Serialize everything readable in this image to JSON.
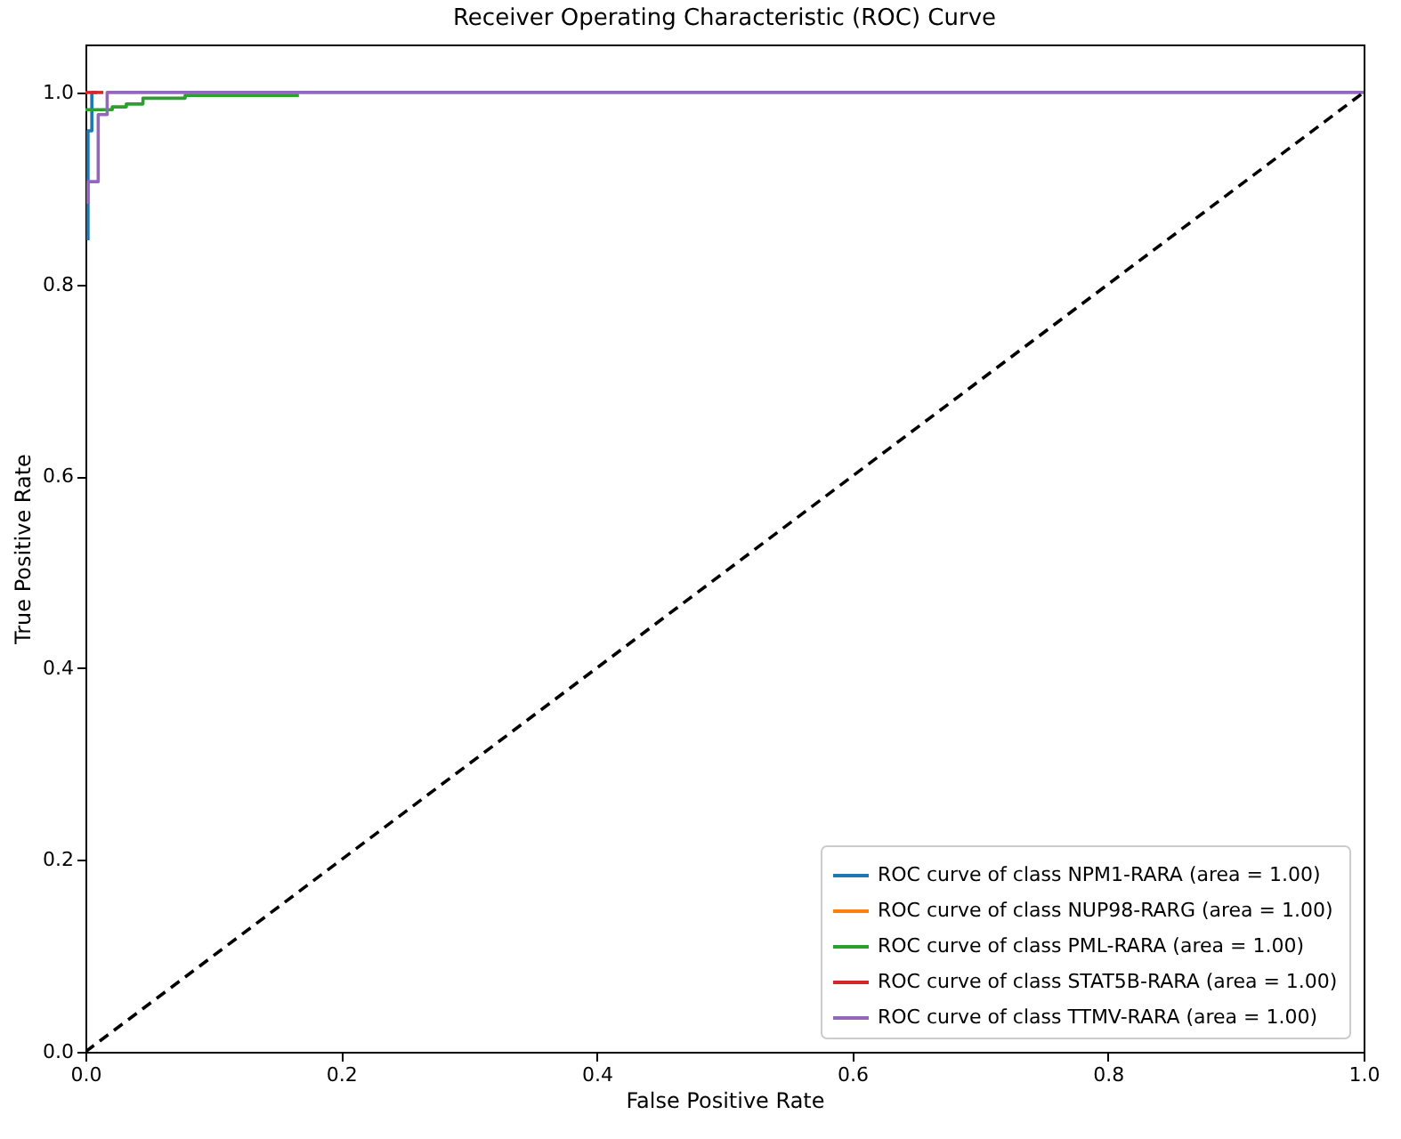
{
  "chart_data": {
    "type": "line",
    "title": "Receiver Operating Characteristic (ROC) Curve",
    "xlabel": "False Positive Rate",
    "ylabel": "True Positive Rate",
    "xlim": [
      0,
      1
    ],
    "ylim": [
      0,
      1.05
    ],
    "xticks": [
      {
        "value": 0,
        "label": "0.0"
      },
      {
        "value": 0.2,
        "label": "0.2"
      },
      {
        "value": 0.4,
        "label": "0.4"
      },
      {
        "value": 0.6,
        "label": "0.6"
      },
      {
        "value": 0.8,
        "label": "0.8"
      },
      {
        "value": 1,
        "label": "1.0"
      }
    ],
    "yticks": [
      {
        "value": 0,
        "label": "0.0"
      },
      {
        "value": 0.2,
        "label": "0.2"
      },
      {
        "value": 0.4,
        "label": "0.4"
      },
      {
        "value": 0.6,
        "label": "0.6"
      },
      {
        "value": 0.8,
        "label": "0.8"
      },
      {
        "value": 1,
        "label": "1.0"
      }
    ],
    "grid": false,
    "legend": "bottom right",
    "marker": "none",
    "series": [
      {
        "name": "ROC curve of class NPM1-RARA (area = 1.00)",
        "color": "#1f77b4",
        "x": [
          0.002,
          0.002,
          0.005,
          0.005,
          0.009
        ],
        "values": [
          0.846,
          0.96,
          0.96,
          1,
          1
        ]
      },
      {
        "name": "ROC curve of class NUP98-RARG (area = 1.00)",
        "color": "#ff7f0e",
        "values": [
          null
        ]
      },
      {
        "name": "ROC curve of class PML-RARA (area = 1.00)",
        "color": "#2ca02c",
        "x": [
          0,
          0.021,
          0.021,
          0.032,
          0.032,
          0.045,
          0.045,
          0.078,
          0.078,
          0.167
        ],
        "values": [
          0.982,
          0.982,
          0.985,
          0.985,
          0.988,
          0.988,
          0.994,
          0.994,
          0.997,
          0.997
        ]
      },
      {
        "name": "ROC curve of class STAT5B-RARA (area = 1.00)",
        "color": "#d62728",
        "x": [
          0,
          0.014
        ],
        "values": [
          1,
          1
        ]
      },
      {
        "name": "ROC curve of class TTMV-RARA (area = 1.00)",
        "color": "#9467bd",
        "x": [
          0.002,
          0.002,
          0.01,
          0.01,
          0.017,
          0.017,
          1
        ],
        "values": [
          0.884,
          0.907,
          0.907,
          0.977,
          0.977,
          1,
          1
        ]
      },
      {
        "color": "#000000",
        "line_style": "dashed",
        "x": [
          0,
          1
        ],
        "values": [
          0,
          1
        ]
      }
    ]
  }
}
